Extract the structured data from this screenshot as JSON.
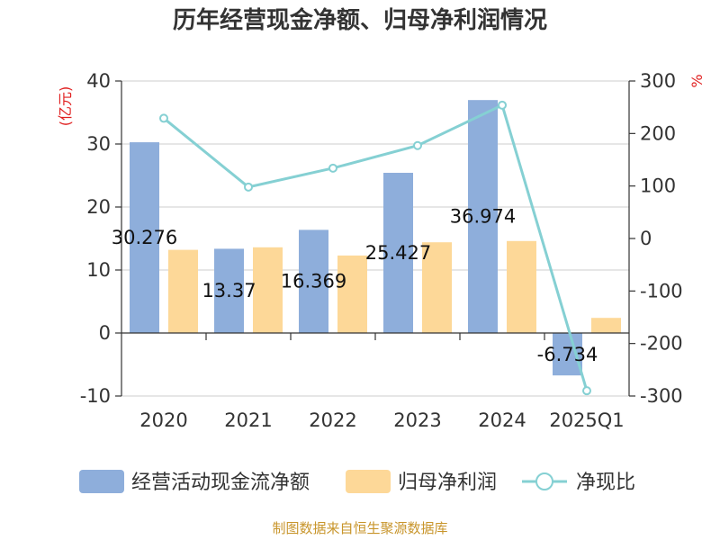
{
  "title": "历年经营现金净额、归母净利润情况",
  "source": "制图数据来自恒生聚源数据库",
  "chart_data": {
    "type": "bar",
    "title": "历年经营现金净额、归母净利润情况",
    "categories": [
      "2020",
      "2021",
      "2022",
      "2023",
      "2024",
      "2025Q1"
    ],
    "y_left": {
      "unit": "(亿元)",
      "ticks": [
        "40",
        "30",
        "20",
        "10",
        "0",
        "-10"
      ],
      "range": [
        -10,
        40
      ]
    },
    "y_right": {
      "unit": "%",
      "ticks": [
        "300",
        "200",
        "100",
        "0",
        "-100",
        "-200",
        "-300"
      ],
      "range": [
        -300,
        300
      ]
    },
    "series": [
      {
        "name": "经营活动现金流净额",
        "kind": "bar",
        "color": "#8eaedb",
        "values": [
          30.276,
          13.37,
          16.369,
          25.427,
          36.974,
          -6.734
        ],
        "labels": [
          "30.276",
          "13.37",
          "16.369",
          "25.427",
          "36.974",
          "-6.734"
        ]
      },
      {
        "name": "归母净利润",
        "kind": "bar",
        "color": "#fdd898",
        "values": [
          13.2,
          13.6,
          12.3,
          14.4,
          14.6,
          2.4
        ]
      },
      {
        "name": "净现比",
        "kind": "line",
        "axis": "right",
        "color": "#85d0d3",
        "values": [
          229,
          98,
          134,
          177,
          254,
          -290
        ]
      }
    ],
    "grid": true,
    "legend": "bottom"
  }
}
